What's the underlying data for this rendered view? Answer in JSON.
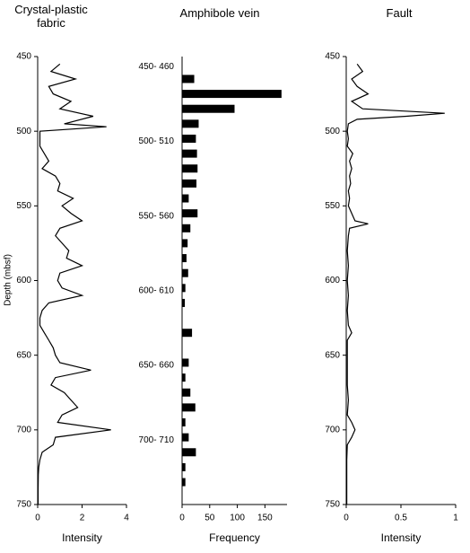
{
  "chart_data": [
    {
      "type": "line",
      "title": "Crystal-plastic fabric",
      "ylabel": "Depth (mbsf)",
      "xlabel": "Intensity",
      "xlim": [
        0,
        4
      ],
      "xticks": [
        0,
        2,
        4
      ],
      "ylim": [
        750,
        450
      ],
      "yticks": [
        450,
        500,
        550,
        600,
        650,
        700,
        750
      ],
      "color": "#000000",
      "series": [
        {
          "depths": [
            455,
            460,
            465,
            470,
            475,
            480,
            485,
            490,
            495,
            497,
            500,
            505,
            510,
            515,
            520,
            525,
            530,
            535,
            540,
            545,
            550,
            555,
            560,
            565,
            570,
            575,
            580,
            585,
            590,
            595,
            600,
            605,
            610,
            615,
            620,
            625,
            630,
            635,
            640,
            645,
            650,
            655,
            660,
            665,
            670,
            675,
            680,
            685,
            690,
            695,
            700,
            705,
            710,
            715,
            720,
            725,
            730,
            740,
            750
          ],
          "values": [
            1.0,
            0.6,
            1.7,
            0.5,
            0.7,
            1.5,
            1.0,
            2.5,
            1.2,
            3.1,
            0.1,
            0.1,
            0.1,
            0.3,
            0.5,
            0.2,
            0.8,
            1.0,
            0.9,
            1.6,
            1.1,
            1.5,
            2.0,
            1.0,
            0.8,
            1.1,
            1.4,
            1.3,
            2.0,
            1.0,
            0.9,
            1.1,
            2.0,
            0.5,
            0.2,
            0.1,
            0.1,
            0.3,
            0.5,
            0.7,
            0.8,
            1.0,
            2.4,
            0.8,
            0.6,
            1.2,
            1.5,
            1.8,
            1.1,
            0.9,
            3.3,
            0.8,
            0.7,
            0.2,
            0.1,
            0.05,
            0.03,
            0.02,
            0.02
          ]
        }
      ]
    },
    {
      "type": "hbar",
      "title": "Amphibole vein",
      "xlabel": "Frequency",
      "xlim": [
        0,
        190
      ],
      "xticks": [
        0,
        50,
        100,
        150
      ],
      "color": "#000000",
      "categories": [
        "450- 460",
        null,
        null,
        null,
        null,
        "500- 510",
        null,
        null,
        null,
        null,
        "550- 560",
        null,
        null,
        null,
        null,
        "600- 610",
        null,
        null,
        null,
        null,
        "650- 660",
        null,
        null,
        null,
        null,
        "700- 710",
        null,
        null,
        null,
        null
      ],
      "values": [
        0,
        22,
        180,
        95,
        30,
        25,
        27,
        28,
        26,
        12,
        28,
        15,
        10,
        8,
        11,
        6,
        5,
        0,
        18,
        0,
        12,
        6,
        15,
        24,
        6,
        12,
        25,
        6,
        6,
        0
      ]
    },
    {
      "type": "line",
      "title": "Fault",
      "xlabel": "Intensity",
      "xlim": [
        0,
        1
      ],
      "xticks": [
        0,
        0.5,
        1
      ],
      "ylim": [
        750,
        450
      ],
      "yticks": [
        450,
        500,
        550,
        600,
        650,
        700,
        750
      ],
      "color": "#000000",
      "series": [
        {
          "depths": [
            455,
            460,
            465,
            470,
            475,
            480,
            485,
            488,
            490,
            492,
            495,
            500,
            505,
            510,
            515,
            520,
            525,
            530,
            535,
            540,
            545,
            550,
            555,
            560,
            562,
            565,
            570,
            580,
            590,
            600,
            610,
            620,
            630,
            635,
            640,
            650,
            660,
            670,
            680,
            690,
            695,
            700,
            705,
            710,
            720,
            750
          ],
          "values": [
            0.1,
            0.15,
            0.05,
            0.1,
            0.2,
            0.05,
            0.15,
            0.9,
            0.55,
            0.1,
            0.02,
            0.01,
            0.02,
            0.01,
            0.06,
            0.03,
            0.05,
            0.03,
            0.04,
            0.02,
            0.03,
            0.02,
            0.05,
            0.08,
            0.2,
            0.03,
            0.02,
            0.01,
            0.02,
            0.01,
            0.02,
            0.01,
            0.02,
            0.05,
            0.01,
            0.01,
            0.01,
            0.01,
            0.02,
            0.01,
            0.05,
            0.08,
            0.05,
            0.01,
            0.005,
            0.005
          ]
        }
      ]
    }
  ]
}
